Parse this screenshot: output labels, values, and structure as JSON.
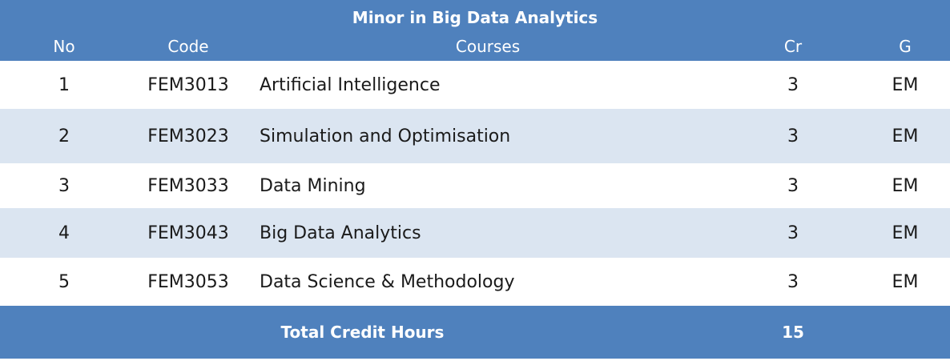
{
  "table": {
    "title": "Minor in Big Data Analytics",
    "headers": {
      "no": "No",
      "code": "Code",
      "courses": "Courses",
      "cr": "Cr",
      "g": "G"
    },
    "rows": [
      {
        "no": "1",
        "code": "FEM3013",
        "course": "Artificial Intelligence",
        "cr": "3",
        "g": "EM"
      },
      {
        "no": "2",
        "code": "FEM3023",
        "course": "Simulation and Optimisation",
        "cr": "3",
        "g": "EM"
      },
      {
        "no": "3",
        "code": "FEM3033",
        "course": "Data Mining",
        "cr": "3",
        "g": "EM"
      },
      {
        "no": "4",
        "code": "FEM3043",
        "course": "Big Data Analytics",
        "cr": "3",
        "g": "EM"
      },
      {
        "no": "5",
        "code": "FEM3053",
        "course": "Data Science & Methodology",
        "cr": "3",
        "g": "EM"
      }
    ],
    "total_label": "Total Credit Hours",
    "total_value": "15"
  },
  "colors": {
    "header_bg": "#4f81bd",
    "band_bg": "#dbe5f1",
    "header_text": "#ffffff"
  }
}
